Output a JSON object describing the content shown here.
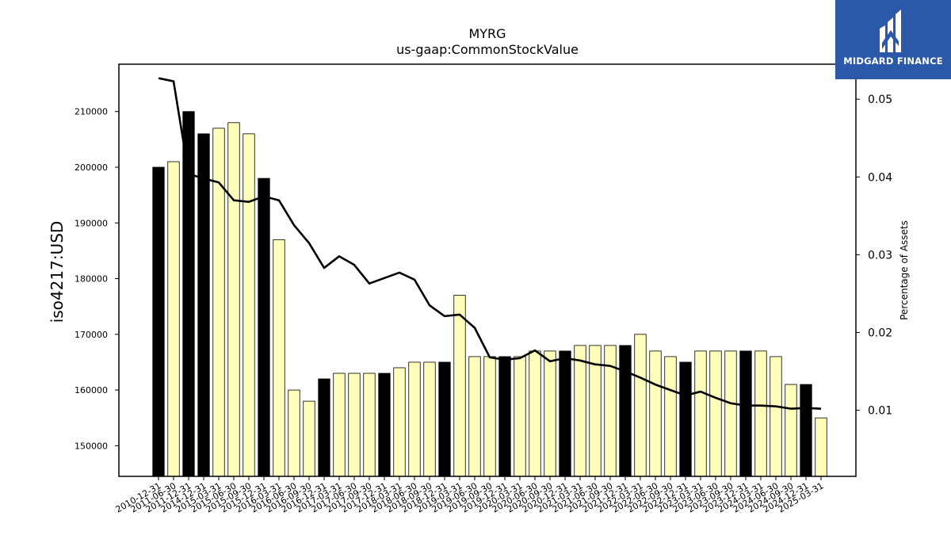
{
  "logo": {
    "text": "MIDGARD FINANCE",
    "color": "#2b58a8"
  },
  "chart_data": {
    "type": "bar",
    "title": "MYRG",
    "subtitle": "us-gaap:CommonStockValue",
    "ylabel": "iso4217:USD",
    "y2label": "Percentage of Assets",
    "ylim": [
      144500,
      218500
    ],
    "y2lim": [
      0.0015,
      0.0545
    ],
    "yticks": [
      150000,
      160000,
      170000,
      180000,
      190000,
      200000,
      210000
    ],
    "y2ticks": [
      0.01,
      0.02,
      0.03,
      0.04,
      0.05
    ],
    "y2tick_labels": [
      "0.01",
      "0.02",
      "0.03",
      "0.04",
      "0.05"
    ],
    "colors": {
      "annual_bar": "#000000",
      "quarter_bar": "#ffffbb",
      "line": "#000000"
    },
    "categories": [
      "2010-12-31",
      "2011-06-30",
      "2011-12-31",
      "2014-12-31",
      "2015-03-31",
      "2015-06-30",
      "2015-09-30",
      "2015-12-31",
      "2016-03-31",
      "2016-06-30",
      "2016-09-30",
      "2016-12-31",
      "2017-03-31",
      "2017-06-30",
      "2017-09-30",
      "2017-12-31",
      "2018-03-31",
      "2018-06-30",
      "2018-09-30",
      "2018-12-31",
      "2019-03-31",
      "2019-06-30",
      "2019-09-30",
      "2019-12-31",
      "2020-03-31",
      "2020-06-30",
      "2020-09-30",
      "2020-12-31",
      "2021-03-31",
      "2021-06-30",
      "2021-09-30",
      "2021-12-31",
      "2022-03-31",
      "2022-06-30",
      "2022-09-30",
      "2022-12-31",
      "2023-03-31",
      "2023-06-30",
      "2023-09-30",
      "2023-12-31",
      "2024-03-31",
      "2024-06-30",
      "2024-09-30",
      "2024-12-31",
      "2025-03-31"
    ],
    "series": [
      {
        "kind": "bar",
        "values": [
          200000,
          201000,
          210000,
          206000,
          207000,
          208000,
          206000,
          198000,
          187000,
          160000,
          158000,
          162000,
          163000,
          163000,
          163000,
          163000,
          164000,
          165000,
          165000,
          165000,
          177000,
          166000,
          166000,
          166000,
          166000,
          167000,
          167000,
          167000,
          168000,
          168000,
          168000,
          168000,
          170000,
          167000,
          166000,
          165000,
          167000,
          167000,
          167000,
          167000,
          167000,
          166000,
          161000,
          161000,
          155000
        ],
        "annual": [
          true,
          false,
          true,
          true,
          false,
          false,
          false,
          true,
          false,
          false,
          false,
          true,
          false,
          false,
          false,
          true,
          false,
          false,
          false,
          true,
          false,
          false,
          false,
          true,
          false,
          false,
          false,
          true,
          false,
          false,
          false,
          true,
          false,
          false,
          false,
          true,
          false,
          false,
          false,
          true,
          false,
          false,
          false,
          true,
          false
        ]
      },
      {
        "kind": "line",
        "axis": "right",
        "values": [
          0.0527,
          0.0523,
          0.0404,
          0.0398,
          0.0393,
          0.037,
          0.0368,
          0.0375,
          0.037,
          0.0338,
          0.0315,
          0.0283,
          0.0298,
          0.0287,
          0.0263,
          0.027,
          0.0277,
          0.0268,
          0.0235,
          0.0221,
          0.0223,
          0.0206,
          0.0168,
          0.0165,
          0.0167,
          0.0177,
          0.0163,
          0.0167,
          0.0164,
          0.0159,
          0.0157,
          0.015,
          0.0142,
          0.0133,
          0.0126,
          0.0119,
          0.0124,
          0.0116,
          0.0109,
          0.0106,
          0.0106,
          0.0105,
          0.0102,
          0.0103,
          0.0102
        ]
      }
    ]
  }
}
